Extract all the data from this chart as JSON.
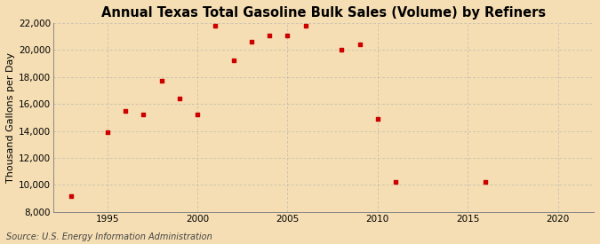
{
  "title": "Annual Texas Total Gasoline Bulk Sales (Volume) by Refiners",
  "ylabel": "Thousand Gallons per Day",
  "source": "Source: U.S. Energy Information Administration",
  "background_color": "#f5deb3",
  "plot_bg_color": "#faebd7",
  "marker_color": "#cc0000",
  "x_data": [
    1993,
    1995,
    1996,
    1997,
    1998,
    1999,
    2000,
    2001,
    2002,
    2003,
    2004,
    2005,
    2006,
    2008,
    2009,
    2010,
    2011,
    2016
  ],
  "y_data": [
    9200,
    13900,
    15500,
    15250,
    17750,
    16400,
    15200,
    21800,
    19200,
    20600,
    21100,
    21050,
    21800,
    20000,
    20400,
    14900,
    10200,
    10200
  ],
  "xlim": [
    1992,
    2022
  ],
  "ylim": [
    8000,
    22000
  ],
  "yticks": [
    8000,
    10000,
    12000,
    14000,
    16000,
    18000,
    20000,
    22000
  ],
  "xticks": [
    1995,
    2000,
    2005,
    2010,
    2015,
    2020
  ],
  "grid_color": "#b0b0b0",
  "title_fontsize": 10.5,
  "label_fontsize": 8,
  "tick_fontsize": 7.5,
  "source_fontsize": 7
}
